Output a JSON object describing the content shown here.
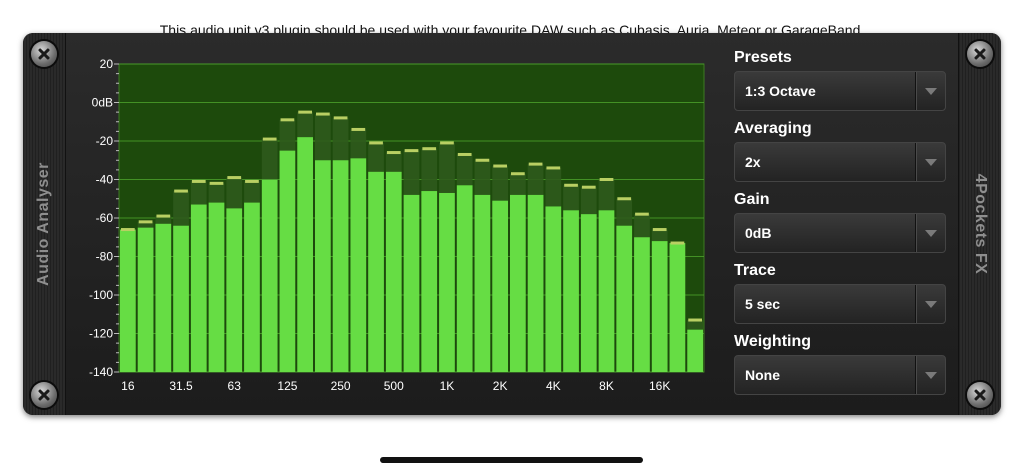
{
  "header_text": "This audio unit v3 plugin should be used with your favourite DAW such as Cubasis, Auria, Meteor or GarageBand.",
  "left_label": "Audio Analyser",
  "right_label": "4Pockets FX",
  "controls": [
    {
      "label": "Presets",
      "value": "1:3 Octave"
    },
    {
      "label": "Averaging",
      "value": "2x"
    },
    {
      "label": "Gain",
      "value": "0dB"
    },
    {
      "label": "Trace",
      "value": "5 sec"
    },
    {
      "label": "Weighting",
      "value": "None"
    }
  ],
  "colors": {
    "bar": "#66dd44",
    "plot_bg": "#1d4a0c",
    "grid": "#4da32c",
    "trace": "#b9cf63"
  },
  "chart_data": {
    "type": "bar",
    "ylim": [
      -140,
      20
    ],
    "yticks": [
      20,
      "0dB",
      -20,
      -40,
      -60,
      -80,
      -100,
      -120,
      -140
    ],
    "xtick_labels": [
      "16",
      "31.5",
      "63",
      "125",
      "250",
      "500",
      "1K",
      "2K",
      "4K",
      "8K",
      "16K"
    ],
    "xtick_bar_index": [
      0,
      3,
      6,
      9,
      12,
      15,
      18,
      21,
      24,
      27,
      30
    ],
    "values": [
      -66,
      -65,
      -63,
      -64,
      -53,
      -52,
      -55,
      -52,
      -40,
      -25,
      -18,
      -30,
      -30,
      -29,
      -36,
      -36,
      -48,
      -46,
      -47,
      -43,
      -48,
      -51,
      -48,
      -48,
      -54,
      -56,
      -58,
      -56,
      -64,
      -70,
      -72,
      -73,
      -118
    ],
    "peak_hold": [
      -66,
      -62,
      -59,
      -46,
      -41,
      -42,
      -39,
      -41,
      -19,
      -9,
      -5,
      -6,
      -8,
      -14,
      -21,
      -26,
      -25,
      -24,
      -21,
      -27,
      -30,
      -33,
      -37,
      -32,
      -34,
      -43,
      -44,
      -40,
      -50,
      -58,
      -66,
      -73,
      -113
    ]
  }
}
